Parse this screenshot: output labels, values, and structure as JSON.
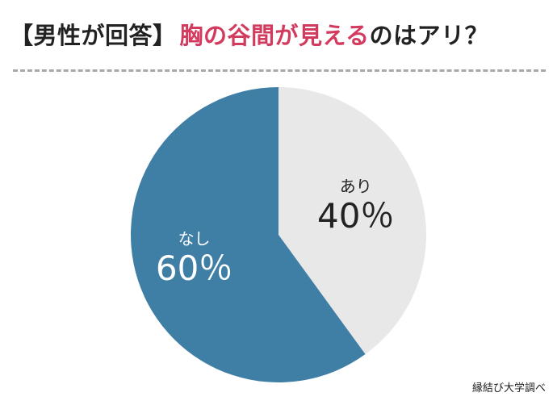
{
  "header": {
    "title_prefix": "【男性が回答】",
    "title_highlight": "胸の谷間が見える",
    "title_rest": "のはアリ？"
  },
  "colors": {
    "accent": "#d23a5e",
    "slice_yes": "#e8e8e8",
    "slice_no": "#3f7fa6",
    "divider": "#a8a8a8"
  },
  "chart_data": {
    "type": "pie",
    "title": "【男性が回答】胸の谷間が見えるのはアリ？",
    "categories": [
      "あり",
      "なし"
    ],
    "values": [
      40,
      60
    ],
    "value_labels": [
      "40％",
      "60％"
    ],
    "start_angle": "12 o'clock, clockwise"
  },
  "footer": {
    "credit": "縁結び大学調べ"
  }
}
